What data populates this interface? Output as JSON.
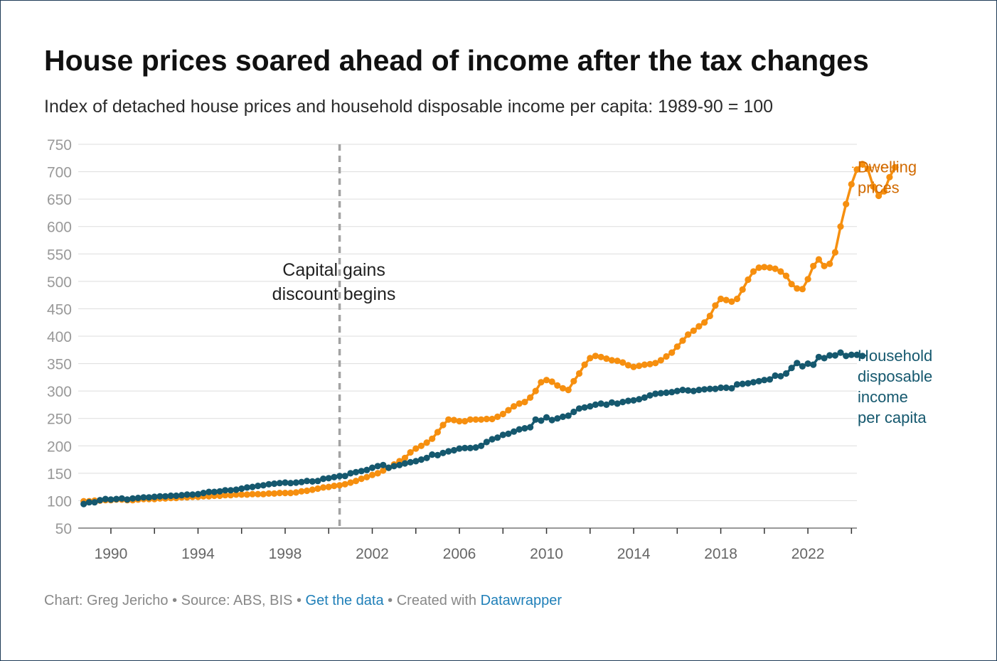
{
  "title": "House prices soared ahead of income after the tax changes",
  "subtitle": "Index of detached house prices and household disposable income per capita: 1989-90 = 100",
  "footer": {
    "chart_credit": "Chart: Greg Jericho",
    "sep1": " • ",
    "source": "Source: ABS, BIS",
    "sep2": " • ",
    "get_data": "Get the data",
    "sep3": " • ",
    "created_with": "Created with ",
    "datawrapper": "Datawrapper"
  },
  "colors": {
    "dwelling": "#f68f0f",
    "dwelling_label": "#d16a00",
    "income": "#15586e",
    "grid": "#dddddd",
    "tick_label": "#999999",
    "vline": "#a3a3a3"
  },
  "chart_data": {
    "type": "line",
    "ylim": [
      50,
      750
    ],
    "xlim": [
      1988.5,
      2024.25
    ],
    "y_ticks": [
      50,
      100,
      150,
      200,
      250,
      300,
      350,
      400,
      450,
      500,
      550,
      600,
      650,
      700,
      750
    ],
    "x_tick_labels": [
      "1990",
      "1994",
      "1998",
      "2002",
      "2006",
      "2010",
      "2014",
      "2018",
      "2022"
    ],
    "x_tick_label_years": [
      1990,
      1994,
      1998,
      2002,
      2006,
      2010,
      2014,
      2018,
      2022
    ],
    "x_minor_tick_years": [
      1990,
      1992,
      1994,
      1996,
      1998,
      2000,
      2002,
      2004,
      2006,
      2008,
      2010,
      2012,
      2014,
      2016,
      2018,
      2020,
      2022,
      2024
    ],
    "grid": true,
    "annotation": {
      "year": 2000.5,
      "lines": [
        "Capital gains",
        "discount begins"
      ]
    },
    "series": [
      {
        "name": "Dwelling prices",
        "label_lines": [
          "Dwelling",
          "prices"
        ],
        "start": 1988.75,
        "step": 0.25,
        "values": [
          99,
          99,
          100,
          100,
          101,
          101,
          102,
          102,
          101,
          101,
          102,
          103,
          103,
          103,
          104,
          104,
          105,
          105,
          106,
          106,
          107,
          107,
          108,
          108,
          109,
          109,
          110,
          110,
          111,
          111,
          111,
          112,
          112,
          112,
          113,
          113,
          114,
          114,
          114,
          115,
          117,
          118,
          120,
          122,
          124,
          125,
          127,
          128,
          130,
          133,
          136,
          140,
          143,
          147,
          150,
          155,
          160,
          166,
          172,
          178,
          188,
          195,
          200,
          206,
          213,
          225,
          238,
          248,
          247,
          245,
          245,
          248,
          248,
          248,
          249,
          249,
          253,
          258,
          265,
          272,
          277,
          280,
          288,
          300,
          316,
          320,
          317,
          310,
          305,
          302,
          318,
          332,
          348,
          360,
          364,
          362,
          359,
          356,
          355,
          352,
          347,
          344,
          346,
          348,
          349,
          351,
          356,
          363,
          370,
          381,
          392,
          403,
          410,
          418,
          425,
          437,
          456,
          468,
          466,
          463,
          468,
          485,
          503,
          518,
          525,
          526,
          525,
          523,
          518,
          510,
          495,
          487,
          486,
          504,
          528,
          540,
          528,
          532,
          553,
          600,
          641,
          677,
          704,
          714,
          705,
          673,
          656,
          664,
          690,
          708
        ]
      },
      {
        "name": "Household disposable income per capita",
        "label_lines": [
          "Household",
          "disposable",
          "income",
          "per capita"
        ],
        "start": 1988.75,
        "step": 0.25,
        "values": [
          94,
          97,
          97,
          101,
          103,
          102,
          103,
          104,
          102,
          104,
          105,
          106,
          106,
          107,
          108,
          108,
          109,
          109,
          110,
          111,
          111,
          112,
          114,
          116,
          116,
          117,
          119,
          119,
          120,
          122,
          124,
          125,
          127,
          128,
          130,
          131,
          132,
          133,
          132,
          133,
          134,
          136,
          135,
          136,
          140,
          141,
          143,
          145,
          145,
          150,
          152,
          154,
          156,
          160,
          163,
          165,
          160,
          163,
          165,
          168,
          170,
          172,
          175,
          178,
          184,
          183,
          187,
          190,
          192,
          195,
          196,
          196,
          197,
          200,
          207,
          212,
          215,
          220,
          222,
          226,
          230,
          232,
          234,
          248,
          246,
          252,
          247,
          250,
          253,
          255,
          262,
          268,
          270,
          272,
          275,
          277,
          275,
          279,
          277,
          280,
          282,
          283,
          285,
          288,
          292,
          295,
          296,
          297,
          298,
          300,
          302,
          301,
          300,
          302,
          303,
          304,
          304,
          306,
          306,
          305,
          312,
          313,
          314,
          316,
          318,
          320,
          321,
          328,
          327,
          332,
          342,
          351,
          345,
          350,
          348,
          362,
          360,
          365,
          365,
          370,
          364,
          366,
          366,
          364
        ]
      }
    ]
  }
}
